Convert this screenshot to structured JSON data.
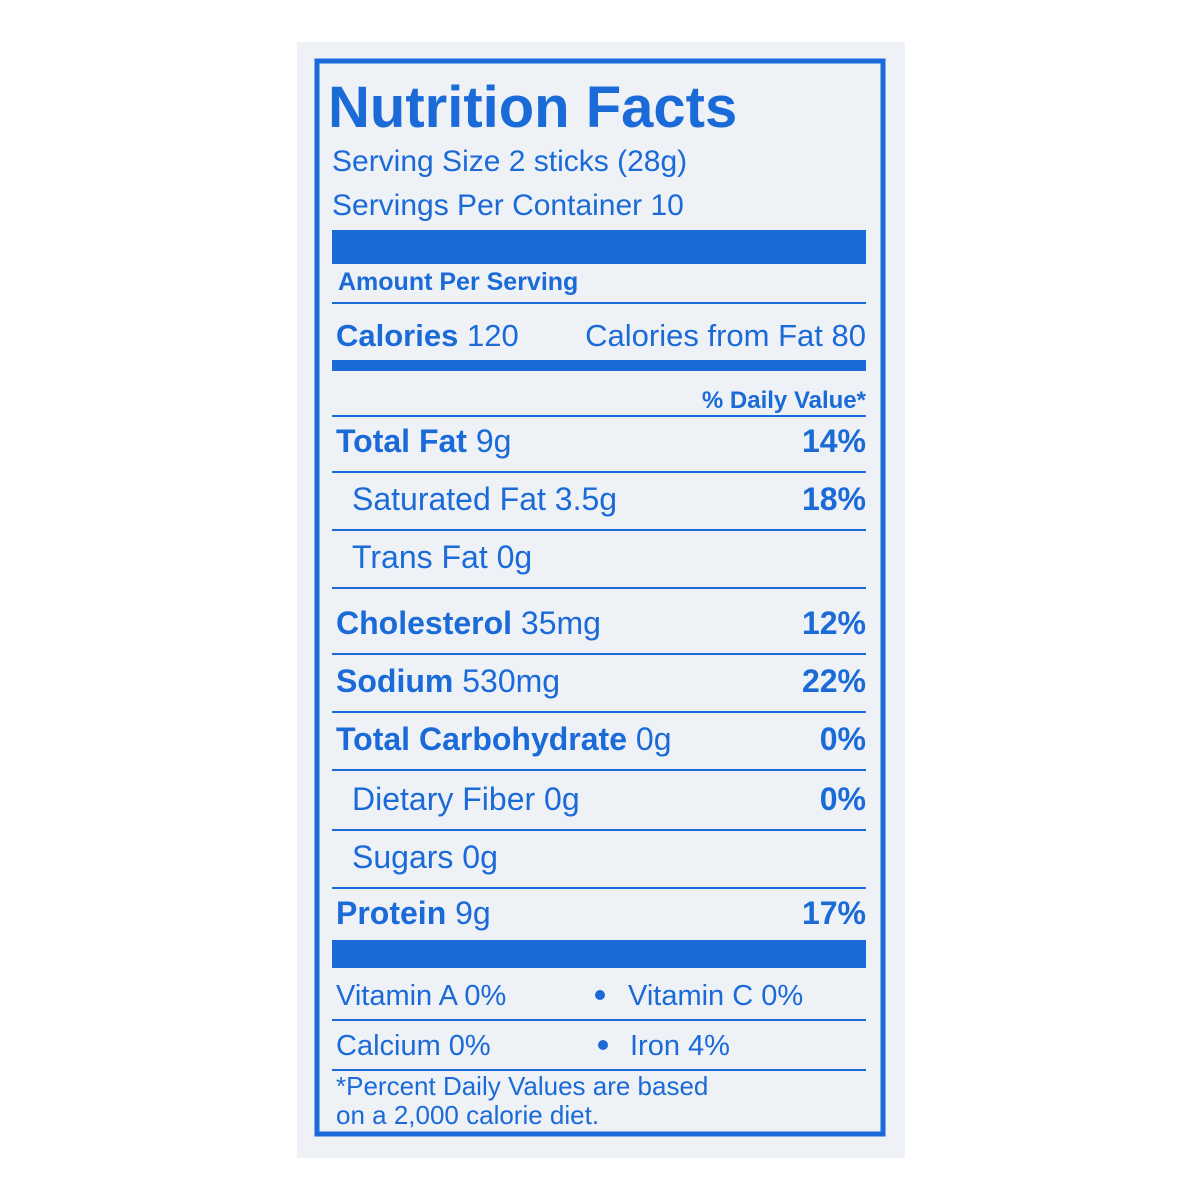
{
  "title": "Nutrition Facts",
  "serving_size": "Serving Size 2 sticks (28g)",
  "servings_per_container": "Servings Per Container 10",
  "amount_per_serving": "Amount Per Serving",
  "calories": {
    "label": "Calories",
    "value": "120",
    "from_fat": "Calories from Fat 80"
  },
  "daily_value_header": "% Daily Value*",
  "nutrients": [
    {
      "name": "Total Fat",
      "amount": "9g",
      "dv": "14%"
    },
    {
      "name": "Saturated Fat",
      "amount": "3.5g",
      "dv": "18%"
    },
    {
      "name": "Trans Fat",
      "amount": "0g"
    },
    {
      "name": "Cholesterol",
      "amount": "35mg",
      "dv": "12%"
    },
    {
      "name": "Sodium",
      "amount": "530mg",
      "dv": "22%"
    },
    {
      "name": "Total Carbohydrate",
      "amount": "0g",
      "dv": "0%"
    },
    {
      "name": "Dietary Fiber",
      "amount": "0g",
      "dv": "0%"
    },
    {
      "name": "Sugars",
      "amount": "0g"
    },
    {
      "name": "Protein",
      "amount": "9g",
      "dv": "17%"
    }
  ],
  "vitamins": [
    [
      "Vitamin A 0%",
      "Vitamin C 0%"
    ],
    [
      "Calcium 0%",
      "Iron 4%"
    ]
  ],
  "footnote": [
    "*Percent Daily Values are based",
    "on a 2,000 calorie diet."
  ]
}
